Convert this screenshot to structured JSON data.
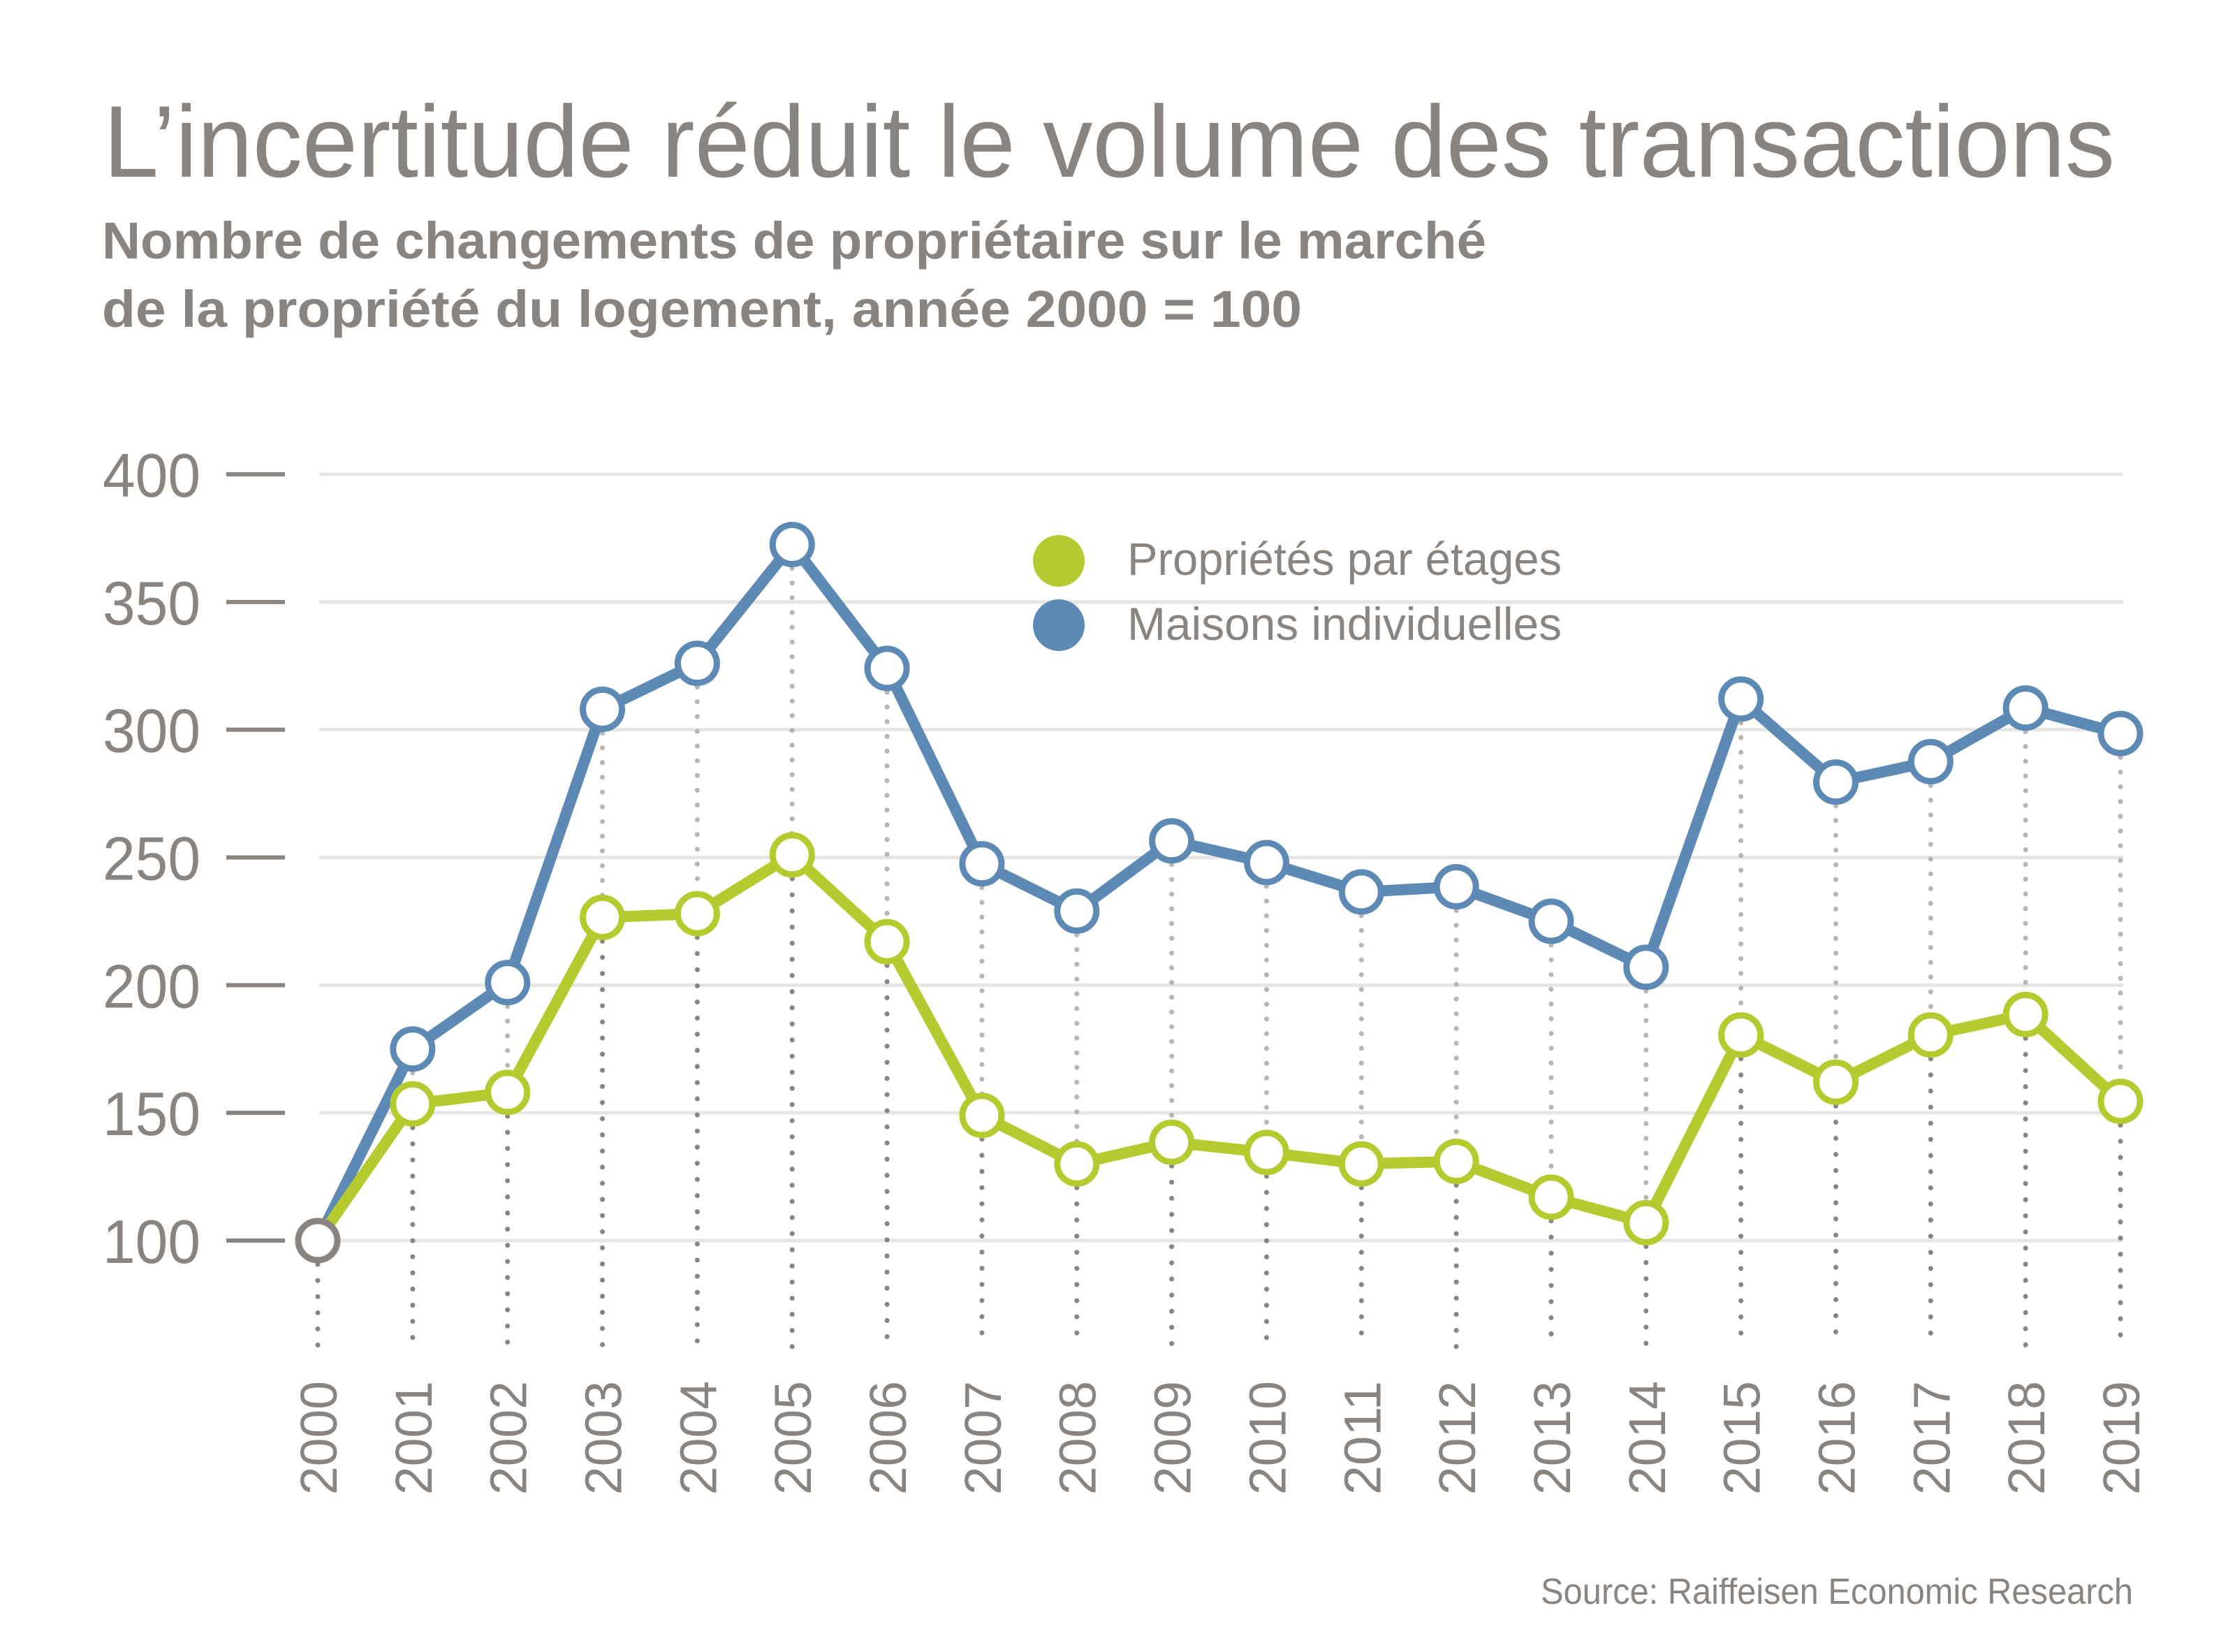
{
  "chart_data": {
    "type": "line",
    "title": "L’incertitude réduit le volume des transactions",
    "subtitle_lines": [
      "Nombre de changements de propriétaire sur le marché",
      "de la propriété du logement, année 2000 = 100"
    ],
    "xlabel": "",
    "ylabel": "",
    "ylim": [
      100,
      400
    ],
    "yticks": [
      "400",
      "350",
      "300",
      "250",
      "200",
      "150",
      "100"
    ],
    "ytick_values": [
      400,
      350,
      300,
      250,
      200,
      150,
      100
    ],
    "categories": [
      "2000",
      "2001",
      "2002",
      "2003",
      "2004",
      "2005",
      "2006",
      "2007",
      "2008",
      "2009",
      "2010",
      "2011",
      "2012",
      "2013",
      "2014",
      "2015",
      "2016",
      "2017",
      "2018",
      "2019"
    ],
    "grid": true,
    "legend_position": "top-center",
    "series": [
      {
        "name": "Propriétés par étages",
        "color": "#b5ca2e",
        "values": [
          100,
          153.5,
          158,
          226.5,
          228,
          251,
          217,
          149,
          130,
          138.5,
          134.5,
          130,
          131,
          117,
          107,
          180.5,
          162,
          180.5,
          188.5,
          154.5
        ]
      },
      {
        "name": "Maisons individuelles",
        "color": "#5d89b5",
        "values": [
          100,
          175,
          201,
          308,
          326,
          372.5,
          324,
          247.5,
          229,
          256.5,
          248,
          236.5,
          238.5,
          225,
          207,
          312,
          279.5,
          287.5,
          308.5,
          298.5
        ]
      }
    ],
    "base_point_color": "#8a8480",
    "source": "Source: Raiffeisen Economic Research"
  },
  "colors": {
    "text": "#8a8480",
    "grid": "#e6e5e4",
    "dots_dark": "#8a8480",
    "dots_light": "#b8b5b3"
  }
}
